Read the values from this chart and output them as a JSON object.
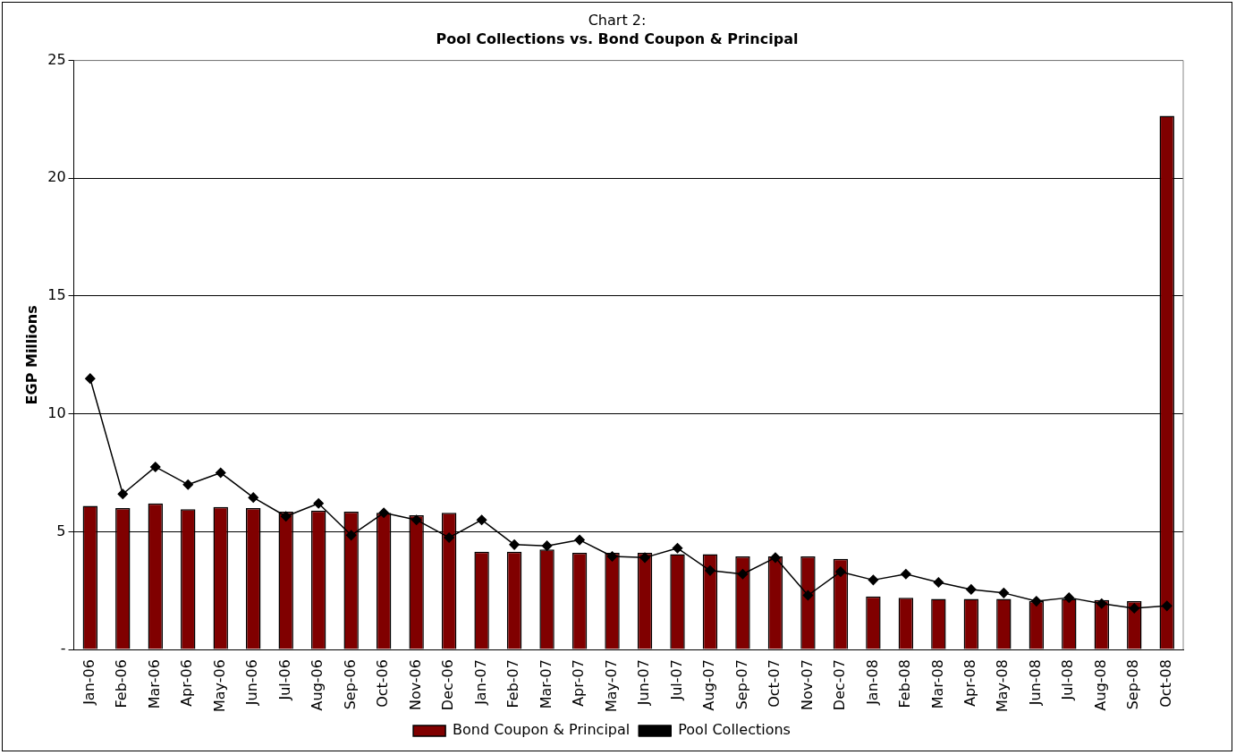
{
  "chart_data": {
    "type": "bar",
    "title": "Chart 2:",
    "subtitle": "Pool Collections vs. Bond Coupon & Principal",
    "ylabel": "EGP Millions",
    "categories": [
      "Jan-06",
      "Feb-06",
      "Mar-06",
      "Apr-06",
      "May-06",
      "Jun-06",
      "Jul-06",
      "Aug-06",
      "Sep-06",
      "Oct-06",
      "Nov-06",
      "Dec-06",
      "Jan-07",
      "Feb-07",
      "Mar-07",
      "Apr-07",
      "May-07",
      "Jun-07",
      "Jul-07",
      "Aug-07",
      "Sep-07",
      "Oct-07",
      "Nov-07",
      "Dec-07",
      "Jan-08",
      "Feb-08",
      "Mar-08",
      "Apr-08",
      "May-08",
      "Jun-08",
      "Jul-08",
      "Aug-08",
      "Sep-08",
      "Oct-08"
    ],
    "series": [
      {
        "name": "Bond Coupon & Principal",
        "color": "#800000",
        "values": [
          6.1,
          6.0,
          6.2,
          5.95,
          6.05,
          6.0,
          5.85,
          5.9,
          5.85,
          5.8,
          5.7,
          5.8,
          4.15,
          4.15,
          4.25,
          4.1,
          4.1,
          4.1,
          4.05,
          4.05,
          3.95,
          3.95,
          3.95,
          3.85,
          2.25,
          2.2,
          2.15,
          2.15,
          2.15,
          2.05,
          2.15,
          2.1,
          2.05,
          22.65
        ]
      },
      {
        "name": "Pool Collections",
        "type": "line",
        "color": "#000000",
        "marker": "diamond",
        "values": [
          11.5,
          6.6,
          7.75,
          7.0,
          7.5,
          6.45,
          5.65,
          6.2,
          4.85,
          5.8,
          5.5,
          4.75,
          5.5,
          4.45,
          4.4,
          4.65,
          3.95,
          3.9,
          4.3,
          3.35,
          3.2,
          3.9,
          2.3,
          3.3,
          2.95,
          3.2,
          2.85,
          2.55,
          2.4,
          2.05,
          2.2,
          1.95,
          1.75,
          1.85
        ]
      }
    ],
    "ylim": [
      0,
      25
    ],
    "yticks": [
      {
        "value": 0,
        "label": "-"
      },
      5,
      10,
      15,
      20,
      25
    ],
    "grid": "y",
    "legend": "bottom"
  }
}
